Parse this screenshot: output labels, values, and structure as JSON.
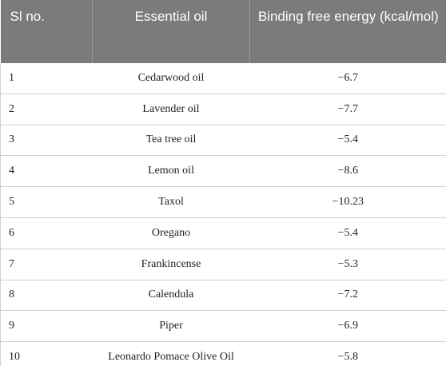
{
  "table": {
    "headers": [
      "Sl no.",
      "Essential oil",
      "Binding free energy (kcal/mol)"
    ],
    "rows": [
      [
        "1",
        "Cedarwood oil",
        "−6.7"
      ],
      [
        "2",
        "Lavender oil",
        "−7.7"
      ],
      [
        "3",
        "Tea tree oil",
        "−5.4"
      ],
      [
        "4",
        "Lemon oil",
        "−8.6"
      ],
      [
        "5",
        "Taxol",
        "−10.23"
      ],
      [
        "6",
        "Oregano",
        "−5.4"
      ],
      [
        "7",
        "Frankincense",
        "−5.3"
      ],
      [
        "8",
        "Calendula",
        "−7.2"
      ],
      [
        "9",
        "Piper",
        "−6.9"
      ],
      [
        "10",
        "Leonardo Pomace Olive Oil",
        "−5.8"
      ]
    ]
  }
}
